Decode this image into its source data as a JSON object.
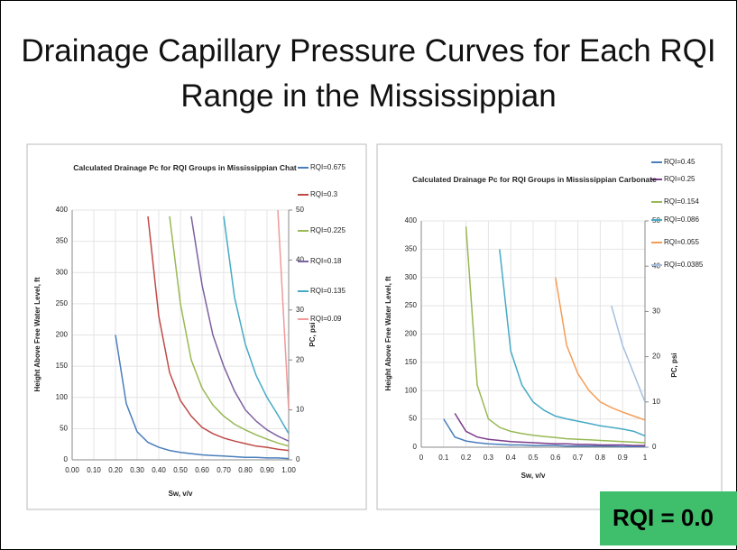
{
  "slide_title": "Drainage Capillary Pressure Curves for Each RQI Range in the Mississippian",
  "badge": "RQI = 0.0",
  "chart_data": [
    {
      "type": "line",
      "title": "Calculated Drainage Pc for RQI Groups in Mississippian Chat",
      "x_label": "Sw, v/v",
      "y_label": "Height  Above Free Water Level, ft",
      "y2_label": "PC, psi",
      "x": [
        0.15,
        0.2,
        0.25,
        0.3,
        0.35,
        0.4,
        0.45,
        0.5,
        0.55,
        0.6,
        0.65,
        0.7,
        0.75,
        0.8,
        0.85,
        0.9,
        0.95,
        1.0
      ],
      "series": [
        {
          "name": "RQI=0.675",
          "color": "#4a7ebb",
          "values": [
            null,
            200,
            90,
            45,
            28,
            20,
            15,
            12,
            10,
            8,
            7,
            6,
            5,
            4,
            4,
            3,
            3,
            2
          ]
        },
        {
          "name": "RQI=0.3",
          "color": "#be4b48",
          "values": [
            null,
            null,
            null,
            null,
            390,
            230,
            140,
            95,
            70,
            52,
            42,
            35,
            30,
            26,
            22,
            20,
            17,
            15
          ]
        },
        {
          "name": "RQI=0.225",
          "color": "#98b954",
          "values": [
            null,
            null,
            null,
            null,
            null,
            null,
            390,
            250,
            160,
            115,
            88,
            70,
            57,
            48,
            40,
            33,
            27,
            22
          ]
        },
        {
          "name": "RQI=0.18",
          "color": "#7d60a0",
          "values": [
            null,
            null,
            null,
            null,
            null,
            null,
            null,
            null,
            390,
            280,
            200,
            150,
            110,
            80,
            62,
            48,
            38,
            30
          ]
        },
        {
          "name": "RQI=0.135",
          "color": "#46aac5",
          "values": [
            null,
            null,
            null,
            null,
            null,
            null,
            null,
            null,
            null,
            null,
            null,
            390,
            260,
            185,
            135,
            100,
            72,
            42
          ]
        },
        {
          "name": "RQI=0.09",
          "color": "#f09a9a",
          "values": [
            null,
            null,
            null,
            null,
            null,
            null,
            null,
            null,
            null,
            null,
            null,
            null,
            null,
            null,
            null,
            null,
            400,
            80
          ]
        }
      ],
      "xlim": [
        0,
        1
      ],
      "xticks": [
        {
          "value": 0,
          "label": "0.00"
        },
        {
          "value": 0.1,
          "label": "0.10"
        },
        {
          "value": 0.2,
          "label": "0.20"
        },
        {
          "value": 0.3,
          "label": "0.30"
        },
        {
          "value": 0.4,
          "label": "0.40"
        },
        {
          "value": 0.5,
          "label": "0.50"
        },
        {
          "value": 0.6,
          "label": "0.60"
        },
        {
          "value": 0.7,
          "label": "0.70"
        },
        {
          "value": 0.8,
          "label": "0.80"
        },
        {
          "value": 0.9,
          "label": "0.90"
        },
        {
          "value": 1,
          "label": "1.00"
        }
      ],
      "ylim": [
        0,
        400
      ],
      "yticks": [
        0,
        50,
        100,
        150,
        200,
        250,
        300,
        350,
        400
      ],
      "y2lim": [
        0,
        50
      ],
      "y2ticks": [
        0,
        10,
        20,
        30,
        40,
        50
      ],
      "grid": true,
      "legend": "right"
    },
    {
      "type": "line",
      "title": "Calculated Drainage Pc for RQI Groups in Mississippian Carbonate",
      "x_label": "Sw, v/v",
      "y_label": "Height  Above Free Water Level, ft",
      "y2_label": "PC, psi",
      "x": [
        0.05,
        0.1,
        0.15,
        0.2,
        0.25,
        0.3,
        0.35,
        0.4,
        0.45,
        0.5,
        0.55,
        0.6,
        0.65,
        0.7,
        0.75,
        0.8,
        0.85,
        0.9,
        0.95,
        1.0
      ],
      "series": [
        {
          "name": "RQI=0.45",
          "color": "#4a7ebb",
          "values": [
            null,
            50,
            18,
            11,
            8,
            6,
            5,
            4,
            4,
            3,
            3,
            3,
            2,
            2,
            2,
            2,
            2,
            1,
            1,
            1
          ]
        },
        {
          "name": "RQI=0.25",
          "color": "#7d3c8c",
          "values": [
            null,
            null,
            60,
            28,
            18,
            14,
            12,
            10,
            9,
            8,
            7,
            6,
            6,
            5,
            5,
            4,
            4,
            4,
            3,
            3
          ]
        },
        {
          "name": "RQI=0.154",
          "color": "#98b954",
          "values": [
            null,
            null,
            null,
            390,
            110,
            50,
            35,
            28,
            24,
            21,
            19,
            17,
            15,
            14,
            13,
            12,
            11,
            10,
            9,
            8
          ]
        },
        {
          "name": "RQI=0.086",
          "color": "#46aac5",
          "values": [
            null,
            null,
            null,
            null,
            null,
            null,
            350,
            170,
            110,
            80,
            65,
            55,
            50,
            46,
            42,
            38,
            35,
            32,
            28,
            20
          ]
        },
        {
          "name": "RQI=0.055",
          "color": "#f59d56",
          "values": [
            null,
            null,
            null,
            null,
            null,
            null,
            null,
            null,
            null,
            null,
            null,
            300,
            180,
            130,
            100,
            80,
            70,
            62,
            55,
            48
          ]
        },
        {
          "name": "RQI=0.0385",
          "color": "#a5bfe0",
          "values": [
            null,
            null,
            null,
            null,
            null,
            null,
            null,
            null,
            null,
            null,
            null,
            null,
            null,
            null,
            null,
            null,
            250,
            180,
            130,
            80
          ]
        }
      ],
      "xlim": [
        0,
        1
      ],
      "xticks": [
        0,
        0.1,
        0.2,
        0.3,
        0.4,
        0.5,
        0.6,
        0.7,
        0.8,
        0.9,
        1
      ],
      "ylim": [
        0,
        400
      ],
      "yticks": [
        0,
        50,
        100,
        150,
        200,
        250,
        300,
        350,
        400
      ],
      "y2lim": [
        0,
        50
      ],
      "y2ticks": [
        0,
        10,
        20,
        30,
        40,
        50
      ],
      "grid": true,
      "legend": "right"
    }
  ]
}
